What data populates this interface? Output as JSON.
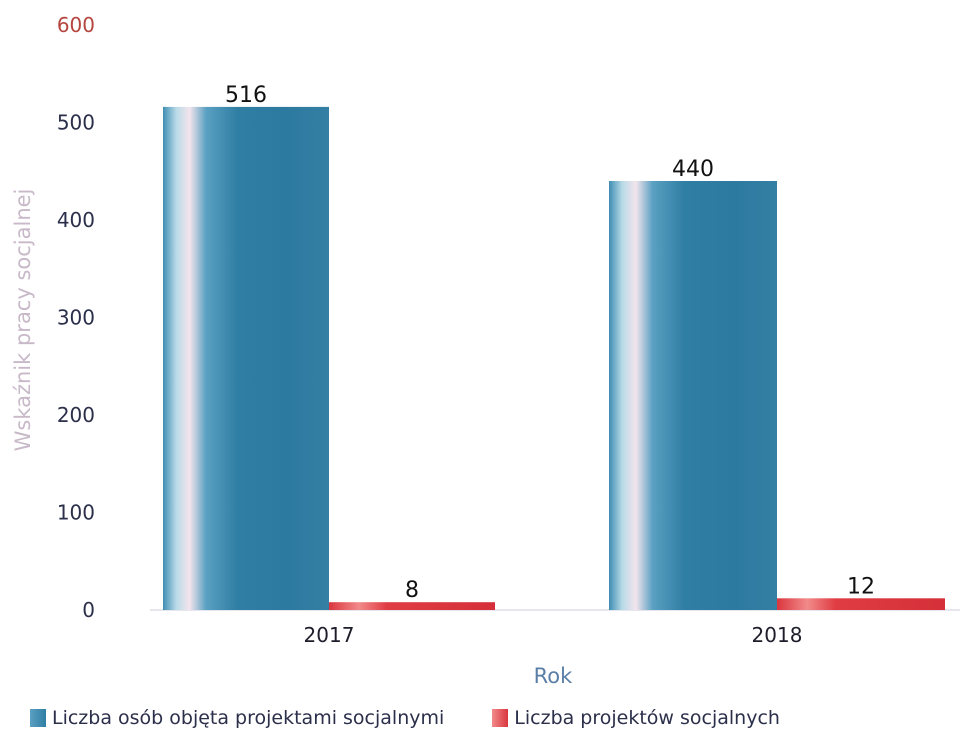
{
  "chart_data": {
    "type": "bar",
    "categories": [
      "2017",
      "2018"
    ],
    "series": [
      {
        "name": "Liczba osób objęta projektami socjalnymi",
        "values": [
          516,
          440
        ],
        "color": "#2f7ea3"
      },
      {
        "name": "Liczba projektów socjalnych",
        "values": [
          8,
          12
        ],
        "color": "#d9363e"
      }
    ],
    "xlabel": "Rok",
    "ylabel": "Wskaźnik pracy socjalnej",
    "ylim": [
      0,
      600
    ],
    "yticks": [
      0,
      100,
      200,
      300,
      400,
      500,
      600
    ],
    "grid": false,
    "legend_position": "bottom-left"
  },
  "colors": {
    "axis_text": "#2b2f4a",
    "top_tick": "#b5453f",
    "xlabel": "#5a7fa6",
    "ylabel": "#c8b9c8"
  }
}
